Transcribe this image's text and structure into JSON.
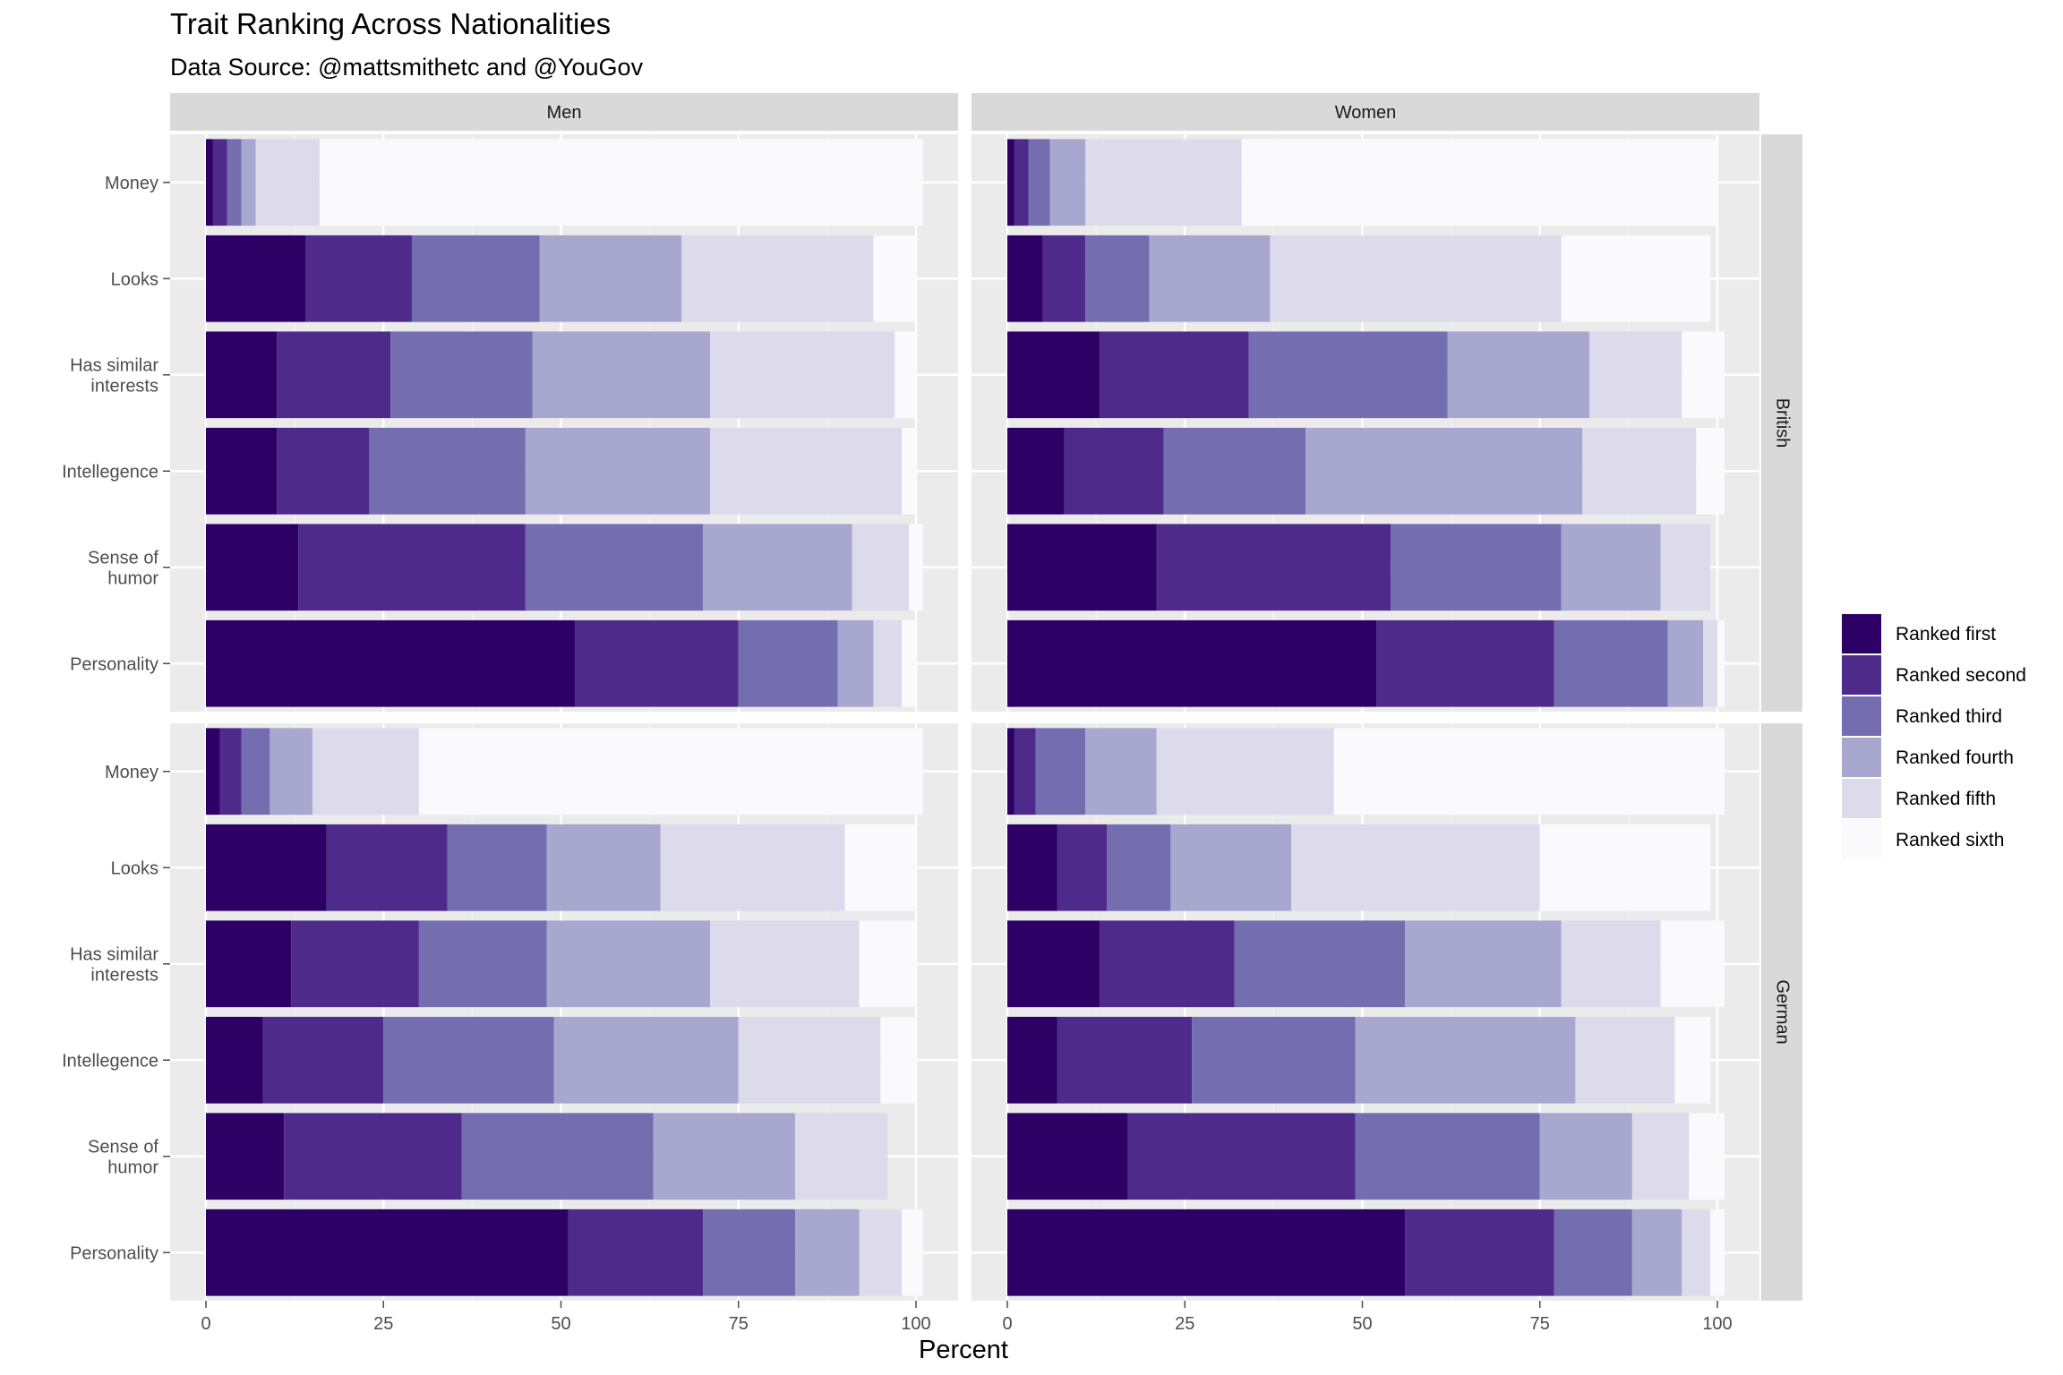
{
  "chart_data": {
    "type": "bar",
    "orientation": "horizontal",
    "stacked": true,
    "title": "Trait Ranking Across Nationalities",
    "subtitle": "Data Source: @mattsmithetc and @YouGov",
    "xlabel": "Percent",
    "ylabel": "",
    "xlim": [
      0,
      100
    ],
    "x_ticks": [
      "0",
      "25",
      "50",
      "75",
      "100"
    ],
    "categories": [
      "Money",
      "Looks",
      "Has similar interests",
      "Intellegence",
      "Sense of humor",
      "Personality"
    ],
    "category_lines": [
      [
        "Money"
      ],
      [
        "Looks"
      ],
      [
        "Has similar",
        "interests"
      ],
      [
        "Intellegence"
      ],
      [
        "Sense of",
        "humor"
      ],
      [
        "Personality"
      ]
    ],
    "facet_columns": [
      "Men",
      "Women"
    ],
    "facet_rows": [
      "British",
      "German"
    ],
    "legend_position": "right",
    "legend": [
      {
        "name": "Ranked first",
        "color": "#2d0066"
      },
      {
        "name": "Ranked second",
        "color": "#4e2a8a"
      },
      {
        "name": "Ranked third",
        "color": "#746db0"
      },
      {
        "name": "Ranked fourth",
        "color": "#a8a7cf"
      },
      {
        "name": "Ranked fifth",
        "color": "#dcdaeb"
      },
      {
        "name": "Ranked sixth",
        "color": "#fafafc"
      }
    ],
    "grid": true,
    "panels": [
      {
        "row": "British",
        "col": "Men",
        "values": [
          [
            1,
            2,
            2,
            2,
            9,
            85
          ],
          [
            14,
            15,
            18,
            20,
            27,
            6
          ],
          [
            10,
            16,
            20,
            25,
            26,
            3
          ],
          [
            10,
            13,
            22,
            26,
            27,
            2
          ],
          [
            13,
            32,
            25,
            21,
            8,
            2
          ],
          [
            52,
            23,
            14,
            5,
            4,
            2
          ]
        ]
      },
      {
        "row": "British",
        "col": "Women",
        "values": [
          [
            1,
            2,
            3,
            5,
            22,
            67
          ],
          [
            5,
            6,
            9,
            17,
            41,
            21
          ],
          [
            13,
            21,
            28,
            20,
            13,
            6
          ],
          [
            8,
            14,
            20,
            39,
            16,
            4
          ],
          [
            21,
            33,
            24,
            14,
            7,
            0
          ],
          [
            52,
            25,
            16,
            5,
            2,
            1
          ]
        ]
      },
      {
        "row": "German",
        "col": "Men",
        "values": [
          [
            2,
            3,
            4,
            6,
            15,
            71
          ],
          [
            17,
            17,
            14,
            16,
            26,
            10
          ],
          [
            12,
            18,
            18,
            23,
            21,
            8
          ],
          [
            8,
            17,
            24,
            26,
            20,
            5
          ],
          [
            11,
            25,
            27,
            20,
            13,
            0
          ],
          [
            51,
            19,
            13,
            9,
            6,
            3
          ]
        ]
      },
      {
        "row": "German",
        "col": "Women",
        "values": [
          [
            1,
            3,
            7,
            10,
            25,
            55
          ],
          [
            7,
            7,
            9,
            17,
            35,
            24
          ],
          [
            13,
            19,
            24,
            22,
            14,
            9
          ],
          [
            7,
            19,
            23,
            31,
            14,
            5
          ],
          [
            17,
            32,
            26,
            13,
            8,
            5
          ],
          [
            56,
            21,
            11,
            7,
            4,
            2
          ]
        ]
      }
    ]
  }
}
